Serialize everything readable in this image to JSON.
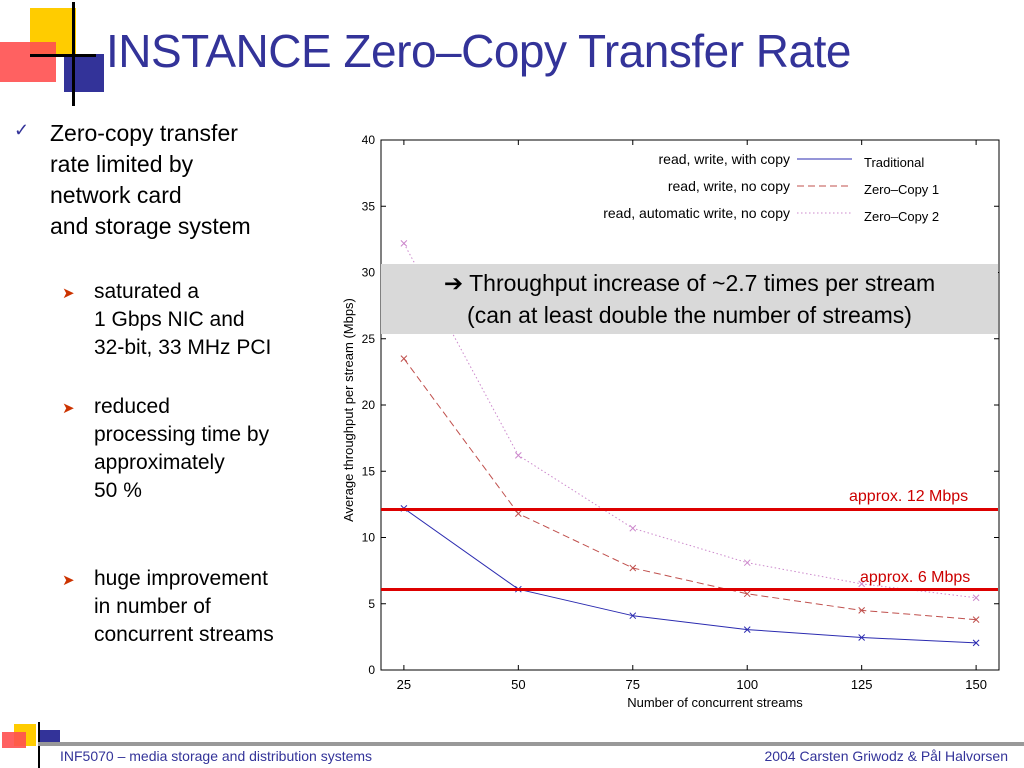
{
  "slide": {
    "title": "INSTANCE Zero–Copy Transfer Rate",
    "main_bullet": [
      "Zero-copy transfer",
      "rate limited by",
      "network card",
      "and storage system"
    ],
    "sub_bullets": [
      {
        "lines": [
          "saturated a",
          "1 Gbps NIC and",
          "32-bit, 33 MHz PCI"
        ]
      },
      {
        "lines": [
          "reduced",
          "processing time by",
          "approximately",
          "50 %"
        ]
      },
      {
        "lines": [
          "huge improvement",
          "in number of",
          "concurrent streams"
        ]
      }
    ],
    "callout": {
      "line1": "➔ Throughput increase of ~2.7 times per stream",
      "line2": "(can at least double the number of streams)"
    },
    "annotations": {
      "approx12": "approx. 12 Mbps",
      "approx6": "approx. 6 Mbps"
    },
    "footer": {
      "left": "INF5070 – media storage and distribution systems",
      "right": "2004  Carsten Griwodz & Pål Halvorsen"
    },
    "colors": {
      "title": "#333399",
      "accent_red": "#cc0000",
      "deco_yellow": "#ffcc00",
      "deco_red": "#ff3333",
      "deco_blue": "#333399"
    }
  },
  "chart_data": {
    "type": "line",
    "xlabel": "Number of concurrent streams",
    "ylabel": "Average throughput per stream (Mbps)",
    "x": [
      25,
      50,
      75,
      100,
      125,
      150
    ],
    "xlim": [
      20,
      155
    ],
    "ylim": [
      0,
      40
    ],
    "xticks": [
      25,
      50,
      75,
      100,
      125,
      150
    ],
    "yticks": [
      0,
      5,
      10,
      15,
      20,
      25,
      30,
      35,
      40
    ],
    "series": [
      {
        "name": "Traditional",
        "desc": "read, write, with copy",
        "color": "#2b2bb0",
        "dash": "",
        "values": [
          12.2,
          6.1,
          4.1,
          3.05,
          2.45,
          2.05
        ]
      },
      {
        "name": "Zero–Copy 1",
        "desc": "read, write, no copy",
        "color": "#c0504d",
        "dash": "7,4",
        "values": [
          23.5,
          11.8,
          7.7,
          5.75,
          4.5,
          3.8
        ]
      },
      {
        "name": "Zero–Copy 2",
        "desc": "read, automatic write, no copy",
        "color": "#cc88cc",
        "dash": "1.5,2.5",
        "values": [
          32.2,
          16.2,
          10.7,
          8.1,
          6.5,
          5.45
        ]
      }
    ],
    "hlines": [
      12,
      6
    ],
    "legend": "top-right",
    "grid": false
  }
}
